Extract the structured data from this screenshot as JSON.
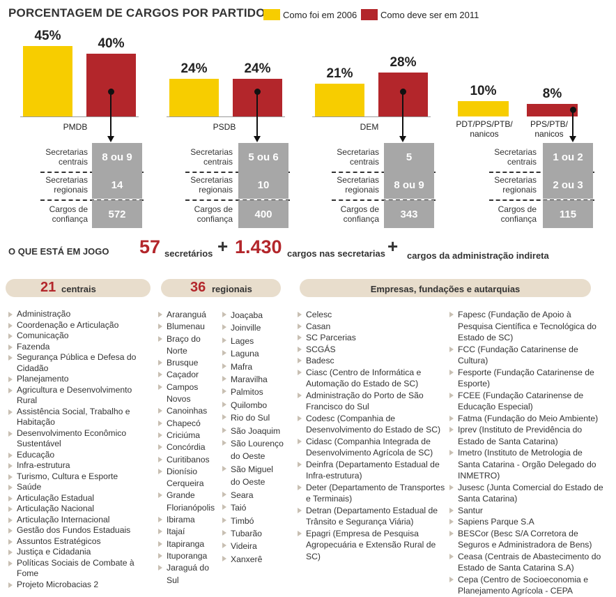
{
  "title": "PORCENTAGEM DE CARGOS POR PARTIDO",
  "legend": {
    "y2006": "Como foi em 2006",
    "y2011": "Como deve ser em 2011"
  },
  "colors": {
    "y2006": "#f7cd00",
    "y2011": "#b3262b",
    "grey": "#a7a7a7"
  },
  "row_labels": {
    "centrais": [
      "Secretarias",
      "centrais"
    ],
    "regionais": [
      "Secretarias",
      "regionais"
    ],
    "confianca": [
      "Cargos de",
      "confiança"
    ]
  },
  "chart_data": {
    "type": "bar",
    "categories": [
      "PMDB",
      "PSDB",
      "DEM",
      "PDT/PPS/PTB/ nanicos"
    ],
    "series": [
      {
        "name": "Como foi em 2006",
        "values": [
          45,
          24,
          21,
          10
        ]
      },
      {
        "name": "Como deve ser em 2011",
        "values": [
          40,
          24,
          28,
          8
        ]
      }
    ],
    "value_labels_2006": [
      "45%",
      "24%",
      "21%",
      "10%"
    ],
    "value_labels_2011": [
      "40%",
      "24%",
      "28%",
      "8%"
    ]
  },
  "parties": [
    {
      "name": "PMDB",
      "centrais": "8 ou 9",
      "regionais": "14",
      "confianca": "572"
    },
    {
      "name": "PSDB",
      "centrais": "5 ou 6",
      "regionais": "10",
      "confianca": "400"
    },
    {
      "name": "DEM",
      "centrais": "5",
      "regionais": "8 ou 9",
      "confianca": "343"
    },
    {
      "name_2006": [
        "PDT/PPS/PTB/",
        "nanicos"
      ],
      "name_2011": [
        "PPS/PTB/",
        "nanicos"
      ],
      "centrais": "1 ou 2",
      "regionais": "2 ou 3",
      "confianca": "115"
    }
  ],
  "jogo": {
    "label": "O QUE ESTÁ EM JOGO",
    "n_secretarios": "57",
    "secretarios_txt": "secretários",
    "plus": "+",
    "n_cargos": "1.430",
    "cargos_txt": "cargos nas secretarias",
    "indireta_txt": "cargos da administração indireta"
  },
  "pills": {
    "centrais_num": "21",
    "centrais_txt": "centrais",
    "regionais_num": "36",
    "regionais_txt": "regionais",
    "empresas_txt": "Empresas, fundações e autarquias"
  },
  "centrais_list": [
    "Administração",
    "Coordenação e Articulação",
    "Comunicação",
    "Fazenda",
    "Segurança Pública e Defesa do Cidadão",
    "Planejamento",
    "Agricultura e Desenvolvimento Rural",
    "Assistência Social, Trabalho e Habitação",
    "Desenvolvimento Econômico Sustentável",
    "Educação",
    "Infra-estrutura",
    "Turismo, Cultura e Esporte",
    "Saúde",
    "Articulação Estadual",
    "Articulação Nacional",
    "Articulação Internacional",
    "Gestão dos Fundos Estaduais",
    "Assuntos Estratégicos",
    "Justiça e Cidadania",
    "Políticas Sociais de Combate à Fome",
    "Projeto Microbacias 2"
  ],
  "regionais_col1": [
    "Araranguá",
    "Blumenau",
    "Braço do Norte",
    "Brusque",
    "Caçador",
    "Campos Novos",
    "Canoinhas",
    "Chapecó",
    "Criciúma",
    "Concórdia",
    "Curitibanos",
    "Dionísio Cerqueira",
    "Grande Florianópolis",
    "Ibirama",
    "Itajaí",
    "Itapiranga",
    "Ituporanga",
    "Jaraguá do Sul"
  ],
  "regionais_col2": [
    "Joaçaba",
    "Joinville",
    "Lages",
    "Laguna",
    "Mafra",
    "Maravilha",
    "Palmitos",
    "Quilombo",
    "Rio do Sul",
    "São Joaquim",
    "São Lourenço do Oeste",
    "São Miguel do Oeste",
    "Seara",
    "Taió",
    "Timbó",
    "Tubarão",
    "Videira",
    "Xanxerê"
  ],
  "empresas_col1": [
    "Celesc",
    "Casan",
    "SC Parcerias",
    "SCGÁS",
    "Badesc",
    "Ciasc (Centro de Informática e Automação do Estado de SC)",
    "Administração do Porto de São Francisco do Sul",
    "Codesc (Companhia de Desenvolvimento do Estado de SC)",
    "Cidasc (Companhia Integrada de Desenvolvimento Agrícola de SC)",
    "Deinfra (Departamento Estadual de Infra-estrutura)",
    "Deter (Departamento de Transportes e Terminais)",
    "Detran (Departamento Estadual de Trânsito e Segurança Viária)",
    "Epagri (Empresa de Pesquisa Agropecuária e Extensão Rural de SC)"
  ],
  "empresas_col2": [
    "Fapesc (Fundação de Apoio à Pesquisa Científica e Tecnológica do Estado de SC)",
    "FCC (Fundação Catarinense de Cultura)",
    "Fesporte (Fundação Catarinense de Esporte)",
    "FCEE (Fundação Catarinense de Educação Especial)",
    "Fatma (Fundação do Meio Ambiente)",
    "Iprev (Instituto de Previdência do Estado de Santa Catarina)",
    "Imetro (Instituto de Metrologia de Santa Catarina - Orgão Delegado do INMETRO)",
    "Jusesc (Junta Comercial do Estado de Santa Catarina)",
    "Santur",
    "Sapiens Parque S.A",
    "BESCor (Besc S/A Corretora de Seguros e Administradora de Bens)",
    "Ceasa (Centrais de Abastecimento do Estado de Santa Catarina S.A)",
    "Cepa (Centro de Socioeconomia e Planejamento Agrícola - CEPA"
  ]
}
